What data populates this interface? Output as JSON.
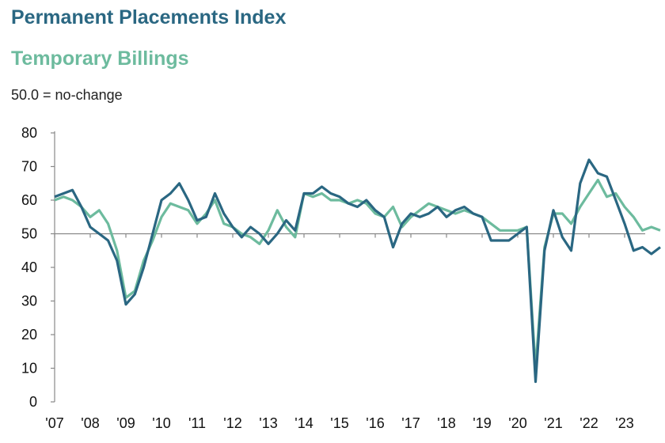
{
  "chart_data": {
    "type": "line",
    "title": "Permanent Placements Index",
    "subtitle": "Temporary Billings",
    "annotation": "50.0 = no-change",
    "xlabel": "",
    "ylabel": "",
    "ylim": [
      0,
      80
    ],
    "yticks": [
      0,
      10,
      20,
      30,
      40,
      50,
      60,
      70,
      80
    ],
    "xlim": [
      2007,
      2023.6
    ],
    "xtick_labels": [
      "'07",
      "'08",
      "'09",
      "'10",
      "'11",
      "'12",
      "'13",
      "'14",
      "'15",
      "'16",
      "'17",
      "'18",
      "'19",
      "'20",
      "'21",
      "'22",
      "'23"
    ],
    "reference_line": 50,
    "series": [
      {
        "name": "Permanent Placements Index",
        "color": "#2a6782",
        "values": [
          61,
          62,
          63,
          58,
          52,
          50,
          48,
          42,
          29,
          32,
          40,
          50,
          60,
          62,
          65,
          60,
          54,
          55,
          62,
          56,
          52,
          49,
          52,
          50,
          47,
          50,
          54,
          51,
          62,
          62,
          64,
          62,
          61,
          59,
          58,
          60,
          57,
          55,
          46,
          53,
          56,
          55,
          56,
          58,
          55,
          57,
          58,
          56,
          55,
          48,
          48,
          48,
          50,
          52,
          6,
          45,
          57,
          49,
          45,
          65,
          72,
          68,
          67,
          60,
          53,
          45,
          46,
          44,
          46
        ]
      },
      {
        "name": "Temporary Billings",
        "color": "#6dbb9e",
        "values": [
          60,
          61,
          60,
          58,
          55,
          57,
          53,
          45,
          31,
          33,
          42,
          48,
          55,
          59,
          58,
          57,
          53,
          56,
          60,
          53,
          52,
          50,
          49,
          47,
          51,
          57,
          52,
          49,
          62,
          61,
          62,
          60,
          60,
          59,
          60,
          59,
          56,
          55,
          58,
          52,
          55,
          57,
          59,
          58,
          57,
          56,
          57,
          56,
          55,
          53,
          51,
          51,
          51,
          52,
          10,
          46,
          56,
          56,
          53,
          58,
          62,
          66,
          61,
          62,
          58,
          55,
          51,
          52,
          51
        ]
      }
    ]
  }
}
